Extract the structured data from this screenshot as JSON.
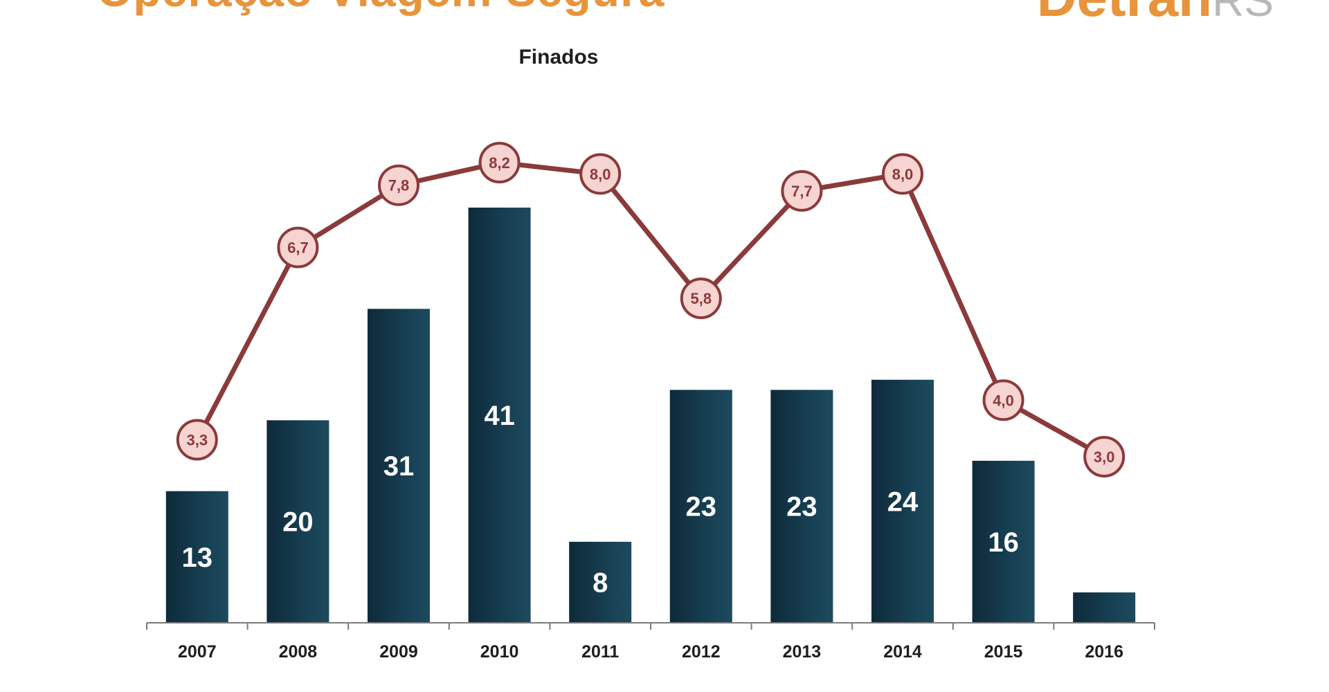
{
  "header": {
    "title": "Operação Viagem Segura",
    "brand_main": "Detran",
    "brand_suffix": "RS"
  },
  "chart_data": {
    "type": "bar",
    "title": "Finados",
    "categories": [
      "2007",
      "2008",
      "2009",
      "2010",
      "2011",
      "2012",
      "2013",
      "2014",
      "2015",
      "2016"
    ],
    "series": [
      {
        "type": "bar",
        "values": [
          13,
          20,
          31,
          41,
          8,
          23,
          23,
          24,
          16,
          3
        ],
        "labels": [
          "13",
          "20",
          "31",
          "41",
          "8",
          "23",
          "23",
          "24",
          "16",
          ""
        ],
        "color": "#173f52"
      },
      {
        "type": "line",
        "values": [
          3.3,
          6.7,
          7.8,
          8.2,
          8.0,
          5.8,
          7.7,
          8.0,
          4.0,
          3.0
        ],
        "labels": [
          "3,3",
          "6,7",
          "7,8",
          "8,2",
          "8,0",
          "5,8",
          "7,7",
          "8,0",
          "4,0",
          "3,0"
        ],
        "color": "#8b3a3a",
        "marker_fill": "#f6d4d2"
      }
    ],
    "bar_ylim": [
      0,
      43
    ],
    "line_ylim": [
      0,
      10
    ],
    "grid": false,
    "legend": "none"
  }
}
